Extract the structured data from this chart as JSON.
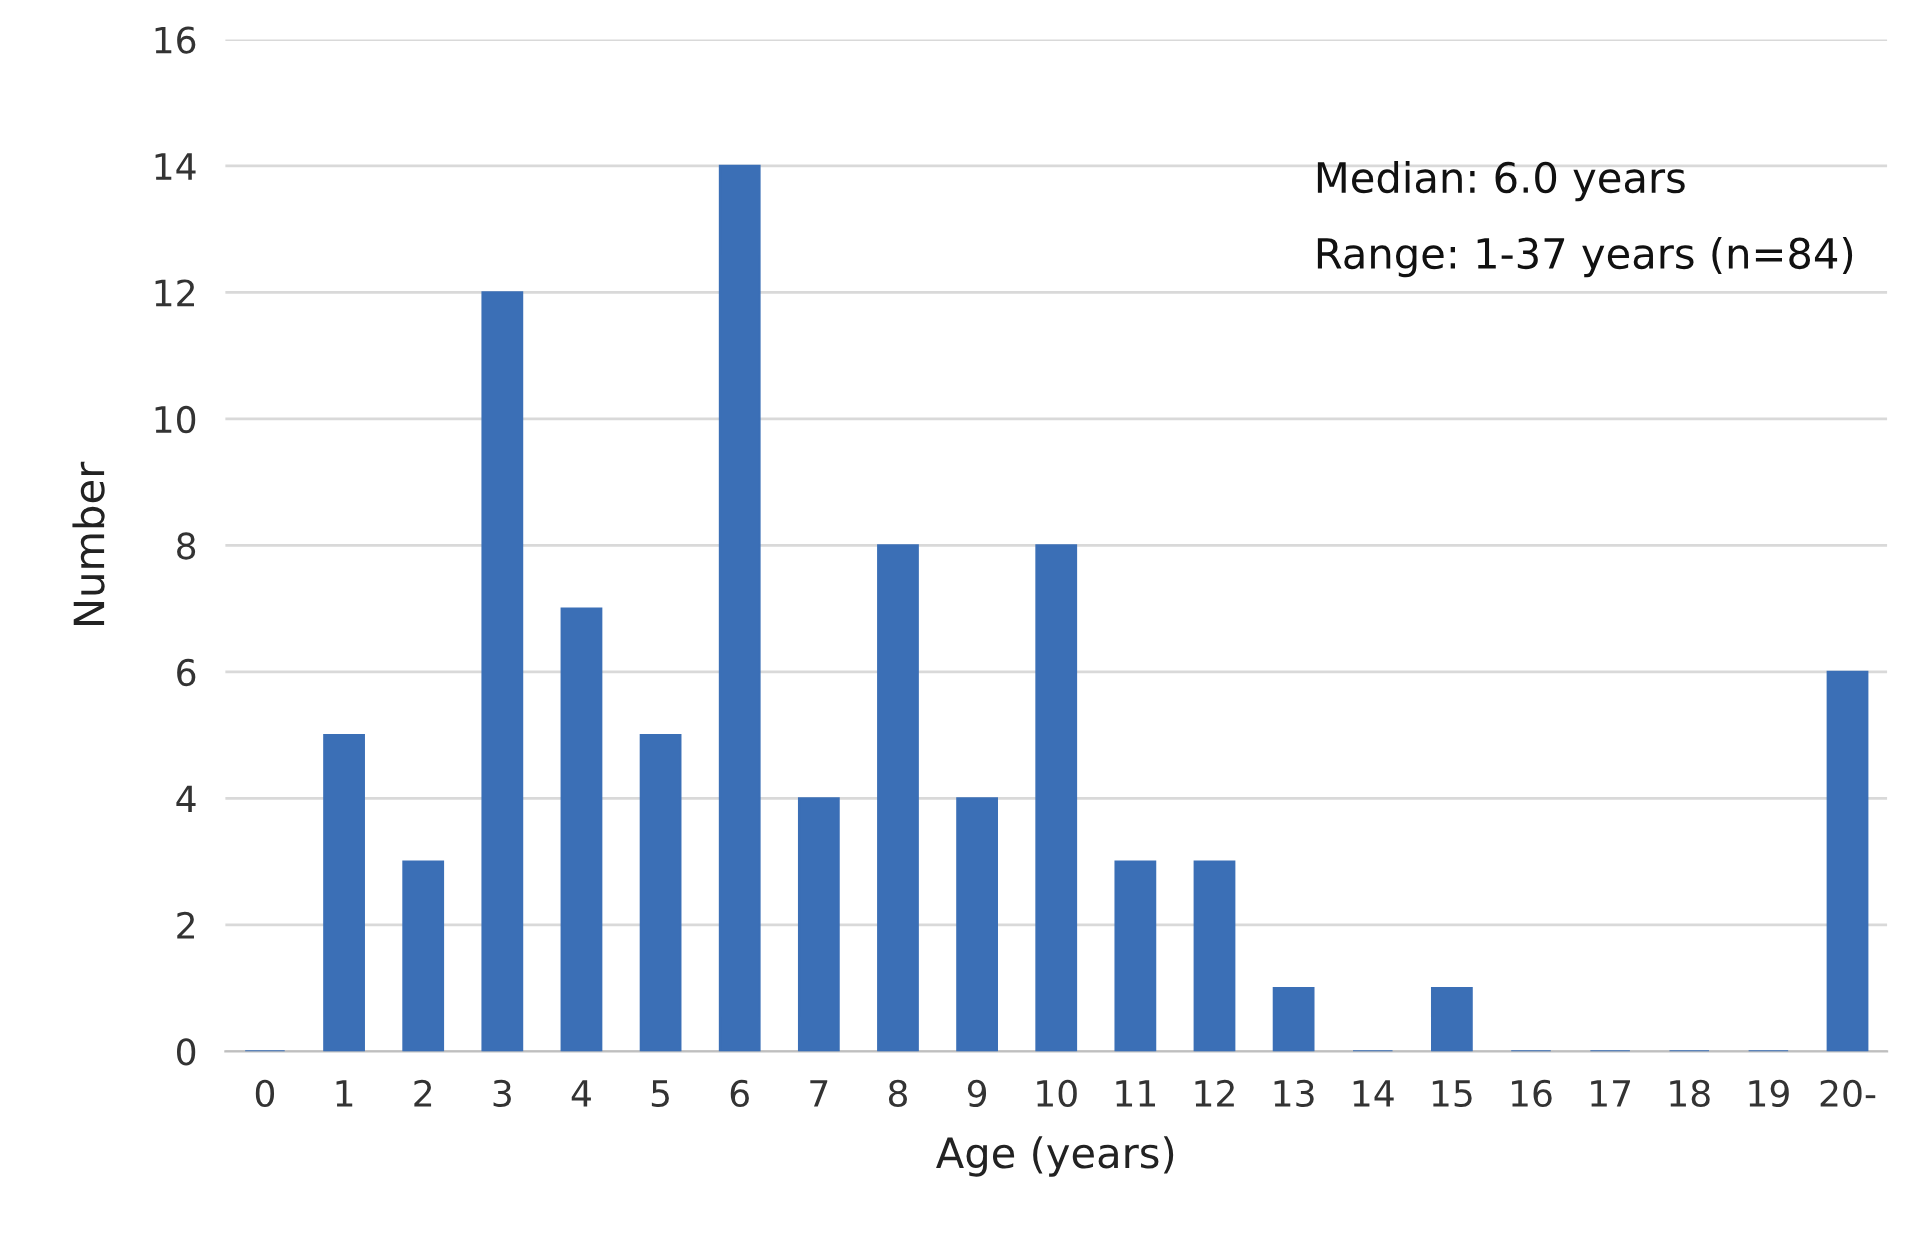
{
  "chart_data": {
    "type": "bar",
    "xlabel": "Age (years)",
    "ylabel": "Number",
    "categories": [
      "0",
      "1",
      "2",
      "3",
      "4",
      "5",
      "6",
      "7",
      "8",
      "9",
      "10",
      "11",
      "12",
      "13",
      "14",
      "15",
      "16",
      "17",
      "18",
      "19",
      "20-"
    ],
    "values": [
      0,
      5,
      3,
      12,
      7,
      5,
      14,
      4,
      8,
      4,
      8,
      3,
      3,
      1,
      0,
      1,
      0,
      0,
      0,
      0,
      6
    ],
    "color": "#3b6fb6",
    "ylim": [
      0,
      16
    ],
    "yticks": [
      0,
      2,
      4,
      6,
      8,
      10,
      12,
      14,
      16
    ],
    "grid": "y",
    "annotations": [
      "Median: 6.0 years",
      "Range: 1-37 years (n=84)"
    ]
  }
}
